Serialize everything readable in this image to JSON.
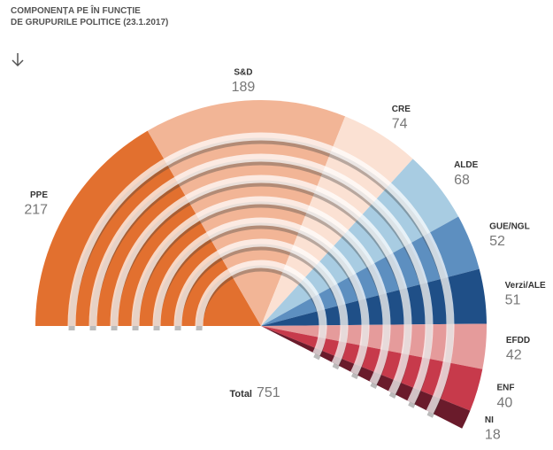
{
  "chart_data": {
    "type": "pie",
    "title_lines": [
      "COMPONENȚA PE ÎN FUNCȚIE",
      "DE GRUPURILE POLITICE (23.1.2017)"
    ],
    "categories": [
      "PPE",
      "S&D",
      "CRE",
      "ALDE",
      "GUE/NGL",
      "Verzi/ALE",
      "EFDD",
      "ENF",
      "NI"
    ],
    "values": [
      217,
      189,
      74,
      68,
      52,
      51,
      42,
      40,
      18
    ],
    "colors": [
      "#e2702f",
      "#f2b596",
      "#fbe1d3",
      "#a8cce2",
      "#5d8fc0",
      "#1f4f87",
      "#e59b9b",
      "#c73a4b",
      "#6a1b2b"
    ],
    "total_label": "Total",
    "total": 751
  }
}
